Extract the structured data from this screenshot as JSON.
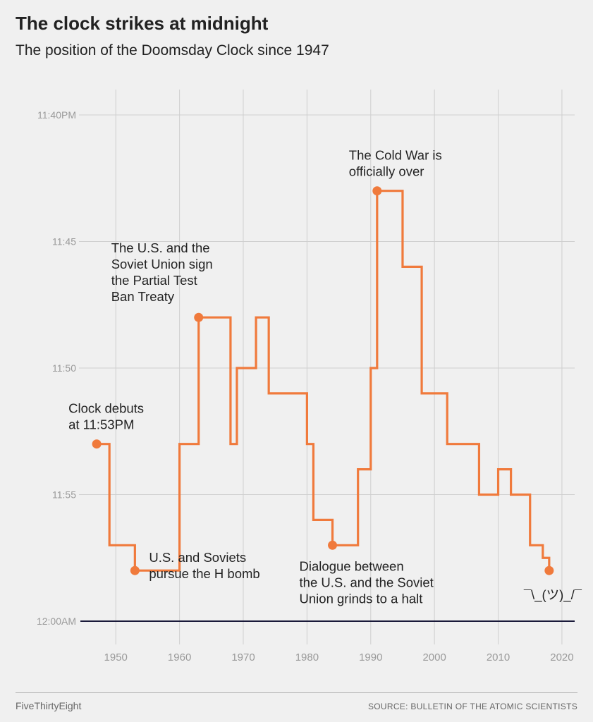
{
  "header": {
    "title": "The clock strikes at midnight",
    "subtitle": "The position of the Doomsday Clock since 1947"
  },
  "footer": {
    "brand": "FiveThirtyEight",
    "source": "SOURCE: BULLETIN OF THE ATOMIC SCIENTISTS"
  },
  "colors": {
    "line": "#f07a3c",
    "grid": "#cfcfcf",
    "midnight": "#1a1a3a",
    "tick": "#9a9a9a"
  },
  "chart_data": {
    "type": "line",
    "step": true,
    "xlim": [
      1944,
      2022
    ],
    "ylim_minutes_to_midnight": [
      0,
      20
    ],
    "xticks": [
      1950,
      1960,
      1970,
      1980,
      1990,
      2000,
      2010,
      2020
    ],
    "yticks": [
      {
        "value": 20,
        "label": "11:40PM"
      },
      {
        "value": 15,
        "label": "11:45"
      },
      {
        "value": 10,
        "label": "11:50"
      },
      {
        "value": 5,
        "label": "11:55"
      },
      {
        "value": 0,
        "label": "12:00AM"
      }
    ],
    "grid": true,
    "series": [
      {
        "units": "minutes to midnight",
        "points": [
          {
            "year": 1947,
            "value": 7
          },
          {
            "year": 1949,
            "value": 3
          },
          {
            "year": 1953,
            "value": 2
          },
          {
            "year": 1960,
            "value": 7
          },
          {
            "year": 1963,
            "value": 12
          },
          {
            "year": 1968,
            "value": 7
          },
          {
            "year": 1969,
            "value": 10
          },
          {
            "year": 1972,
            "value": 12
          },
          {
            "year": 1974,
            "value": 9
          },
          {
            "year": 1980,
            "value": 7
          },
          {
            "year": 1981,
            "value": 4
          },
          {
            "year": 1984,
            "value": 3
          },
          {
            "year": 1988,
            "value": 6
          },
          {
            "year": 1990,
            "value": 10
          },
          {
            "year": 1991,
            "value": 17
          },
          {
            "year": 1995,
            "value": 14
          },
          {
            "year": 1998,
            "value": 9
          },
          {
            "year": 2002,
            "value": 7
          },
          {
            "year": 2007,
            "value": 5
          },
          {
            "year": 2010,
            "value": 6
          },
          {
            "year": 2012,
            "value": 5
          },
          {
            "year": 2015,
            "value": 3
          },
          {
            "year": 2017,
            "value": 2.5
          },
          {
            "year": 2018,
            "value": 2
          }
        ]
      }
    ],
    "highlights": [
      {
        "year": 1947,
        "value": 7,
        "lines": [
          "Clock debuts",
          "at 11:53PM"
        ],
        "placement": "above"
      },
      {
        "year": 1953,
        "value": 2,
        "lines": [
          "U.S. and Soviets",
          "pursue the H bomb"
        ],
        "placement": "right"
      },
      {
        "year": 1963,
        "value": 12,
        "lines": [
          "The U.S. and the",
          "Soviet Union sign",
          "the Partial Test",
          "Ban Treaty"
        ],
        "placement": "above-left"
      },
      {
        "year": 1984,
        "value": 3,
        "lines": [
          "Dialogue between",
          "the U.S. and the Soviet",
          "Union grinds to a halt"
        ],
        "placement": "below"
      },
      {
        "year": 1991,
        "value": 17,
        "lines": [
          "The Cold War is",
          "officially over"
        ],
        "placement": "above"
      },
      {
        "year": 2018,
        "value": 2,
        "lines": [
          "¯\\_(ツ)_/¯"
        ],
        "placement": "below"
      }
    ]
  }
}
